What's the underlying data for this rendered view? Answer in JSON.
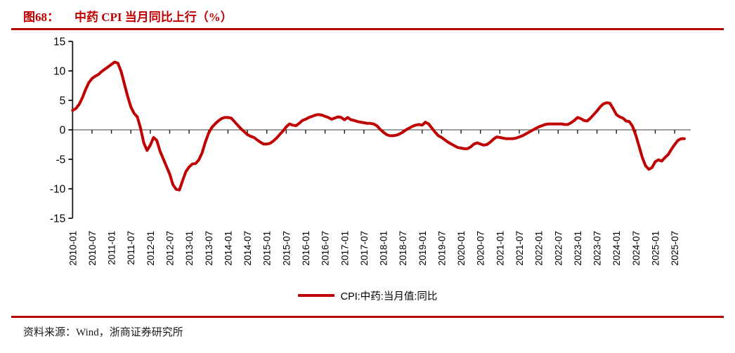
{
  "figure": {
    "number_label": "图68：",
    "title": "中药 CPI 当月同比上行（%）",
    "source_label": "资料来源：",
    "source_text": "Wind，浙商证券研究所",
    "accent_color": "#c00000"
  },
  "legend": {
    "label": "CPI:中药:当月值:同比"
  },
  "chart_data": {
    "type": "line",
    "title": "中药 CPI 当月同比上行（%）",
    "ylabel": "",
    "xlabel": "",
    "ylim": [
      -15,
      15
    ],
    "y_ticks": [
      15,
      10,
      5,
      0,
      -5,
      -10,
      -15
    ],
    "grid": false,
    "zero_line": true,
    "legend_position": "bottom",
    "line_color": "#c00000",
    "axis_color": "#1a1a1a",
    "zero_line_color": "#7f7f7f",
    "x_tick_labels": [
      "2010-01",
      "2010-07",
      "2011-01",
      "2011-07",
      "2012-01",
      "2012-07",
      "2013-01",
      "2013-07",
      "2014-01",
      "2014-07",
      "2015-01",
      "2015-07",
      "2016-01",
      "2016-07",
      "2017-01",
      "2017-07",
      "2018-01",
      "2018-07",
      "2019-01",
      "2019-07",
      "2020-01",
      "2020-07",
      "2021-01",
      "2021-07",
      "2022-01",
      "2022-07",
      "2023-01",
      "2023-07",
      "2024-01",
      "2024-07",
      "2025-01",
      "2025-07"
    ],
    "series": [
      {
        "name": "CPI:中药:当月值:同比",
        "start": "2010-01",
        "frequency": "monthly",
        "values": [
          3.3,
          3.6,
          4.3,
          5.4,
          6.8,
          8.0,
          8.7,
          9.1,
          9.4,
          9.9,
          10.3,
          10.7,
          11.1,
          11.5,
          11.3,
          9.9,
          7.8,
          5.7,
          3.9,
          2.8,
          2.2,
          0.3,
          -2.2,
          -3.5,
          -2.6,
          -1.3,
          -1.8,
          -3.6,
          -4.9,
          -6.2,
          -7.5,
          -9.3,
          -10.1,
          -10.2,
          -8.6,
          -7.1,
          -6.3,
          -5.8,
          -5.7,
          -5.1,
          -3.9,
          -2.1,
          -0.6,
          0.4,
          1.0,
          1.5,
          1.9,
          2.1,
          2.1,
          2.0,
          1.4,
          0.8,
          0.2,
          -0.3,
          -0.8,
          -1.1,
          -1.3,
          -1.7,
          -2.1,
          -2.4,
          -2.4,
          -2.3,
          -1.9,
          -1.4,
          -0.8,
          -0.2,
          0.5,
          1.0,
          0.8,
          0.7,
          1.1,
          1.6,
          1.8,
          2.1,
          2.3,
          2.5,
          2.6,
          2.5,
          2.3,
          2.1,
          1.8,
          2.0,
          2.2,
          2.1,
          1.7,
          2.1,
          1.7,
          1.6,
          1.4,
          1.3,
          1.2,
          1.1,
          1.1,
          1.0,
          0.7,
          0.1,
          -0.4,
          -0.8,
          -1.0,
          -1.0,
          -0.9,
          -0.7,
          -0.4,
          0.0,
          0.3,
          0.6,
          0.8,
          0.9,
          0.8,
          1.3,
          1.0,
          0.3,
          -0.4,
          -1.0,
          -1.3,
          -1.7,
          -2.1,
          -2.4,
          -2.7,
          -3.0,
          -3.1,
          -3.2,
          -3.2,
          -2.9,
          -2.4,
          -2.2,
          -2.4,
          -2.6,
          -2.5,
          -2.1,
          -1.6,
          -1.2,
          -1.3,
          -1.4,
          -1.5,
          -1.5,
          -1.5,
          -1.4,
          -1.2,
          -1.0,
          -0.7,
          -0.4,
          -0.1,
          0.2,
          0.5,
          0.7,
          0.9,
          1.0,
          1.0,
          1.0,
          1.0,
          1.0,
          0.9,
          0.9,
          1.2,
          1.6,
          2.1,
          1.9,
          1.6,
          1.5,
          2.0,
          2.6,
          3.2,
          3.9,
          4.4,
          4.6,
          4.5,
          3.6,
          2.6,
          2.2,
          2.0,
          1.5,
          1.4,
          0.6,
          -0.9,
          -2.8,
          -4.7,
          -6.1,
          -6.7,
          -6.4,
          -5.4,
          -5.1,
          -5.3,
          -4.7,
          -4.2,
          -3.3,
          -2.5,
          -1.8,
          -1.5,
          -1.5
        ]
      }
    ]
  }
}
